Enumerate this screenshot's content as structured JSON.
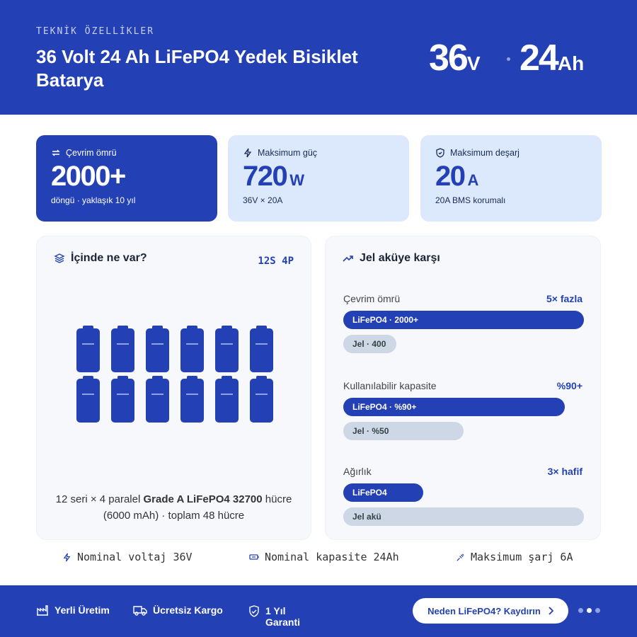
{
  "header": {
    "eyebrow": "TEKNİK ÖZELLİKLER",
    "title": "36 Volt 24 Ah LiFePO4 Yedek Bisiklet Batarya",
    "voltage": {
      "value": "36",
      "unit": "V"
    },
    "capacity": {
      "value": "24",
      "unit": "Ah"
    }
  },
  "stats": [
    {
      "label": "Çevrim ömrü",
      "value": "2000+",
      "unit": null,
      "note": "döngü · yaklaşık 10 yıl"
    },
    {
      "label": "Maksimum güç",
      "value": "720",
      "unit": "W",
      "note": "36V × 20A"
    },
    {
      "label": "Maksimum deşarj",
      "value": "20",
      "unit": "A",
      "note": "20A BMS korumalı"
    }
  ],
  "contents": {
    "title": "İçinde ne var?",
    "badge": "12S 4P",
    "caption": [
      "12 seri × 4 paralel",
      "Grade A LiFePO4 32700",
      "hücre (6000 mAh) · toplam 48 hücre"
    ]
  },
  "comparison": {
    "title": "Jel aküye karşı",
    "rows": [
      {
        "label": "Çevrim ömrü",
        "highlight": "5× fazla",
        "bars": [
          "LiFePO4 · 2000+",
          "Jel · 400"
        ]
      },
      {
        "label": "Kullanılabilir kapasite",
        "highlight": "%90+",
        "bars": [
          "LiFePO4 · %90+",
          "Jel · %50"
        ]
      },
      {
        "label": "Ağırlık",
        "highlight": "3× hafif",
        "bars": [
          "LiFePO4",
          "Jel akü"
        ]
      }
    ]
  },
  "specs": [
    "Nominal voltaj 36V",
    "Nominal kapasite 24Ah",
    "Maksimum şarj 6A"
  ],
  "footer": {
    "features": [
      "Yerli Üretim",
      "Ücretsiz Kargo",
      "1 Yıl Garanti"
    ],
    "button": "Neden LiFePO4? Kaydırın"
  }
}
